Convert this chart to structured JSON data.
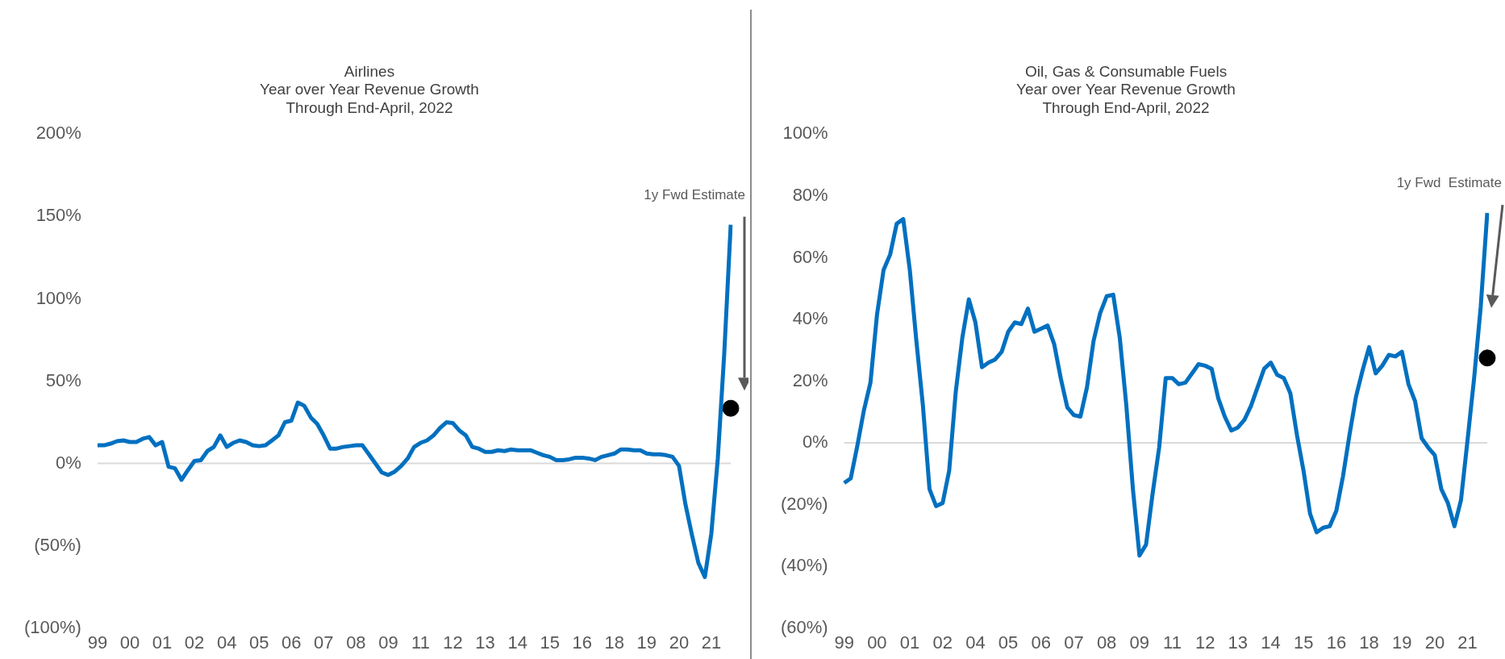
{
  "chart_data": [
    {
      "type": "line",
      "title": "Airlines",
      "subtitle": "Year over Year Revenue Growth\nThrough End-April, 2022",
      "categories": [
        "99",
        null,
        null,
        null,
        null,
        "00",
        null,
        null,
        null,
        null,
        "01",
        null,
        null,
        null,
        null,
        "02",
        null,
        null,
        null,
        null,
        "04",
        null,
        null,
        null,
        null,
        "05",
        null,
        null,
        null,
        null,
        "06",
        null,
        null,
        null,
        null,
        "07",
        null,
        null,
        null,
        null,
        "08",
        null,
        null,
        null,
        null,
        "09",
        null,
        null,
        null,
        null,
        "11",
        null,
        null,
        null,
        null,
        "12",
        null,
        null,
        null,
        null,
        "13",
        null,
        null,
        null,
        null,
        "14",
        null,
        null,
        null,
        null,
        "15",
        null,
        null,
        null,
        null,
        "16",
        null,
        null,
        null,
        null,
        "18",
        null,
        null,
        null,
        null,
        "19",
        null,
        null,
        null,
        null,
        "20",
        null,
        null,
        null,
        null,
        "21",
        null,
        null,
        null
      ],
      "series": [
        {
          "color": "#0070c0",
          "values": [
            11,
            11,
            12,
            13.5,
            14,
            13,
            13,
            15,
            16,
            11,
            13,
            -2,
            -3,
            -10,
            -4,
            1.5,
            2,
            7.5,
            10,
            17,
            10,
            12.5,
            14,
            13,
            11,
            10.5,
            11,
            14,
            17,
            25,
            26,
            37,
            35,
            28,
            24,
            17,
            9,
            9,
            10,
            10.5,
            11,
            11,
            5.5,
            0,
            -5.5,
            -7,
            -5,
            -1.5,
            3,
            10,
            12.5,
            14,
            17,
            21.5,
            25,
            24.5,
            20,
            17,
            10,
            9,
            7,
            7,
            8,
            7.5,
            8.5,
            8,
            8,
            8,
            6.5,
            5,
            4,
            2,
            2,
            2.5,
            3.5,
            3.5,
            3,
            2,
            4,
            5,
            6,
            8.5,
            8.5,
            8,
            8,
            6,
            5.5,
            5.5,
            5,
            4,
            -1.5,
            -25,
            -43.5,
            -60.5,
            -69,
            -42.5,
            3,
            67,
            145
          ]
        },
        {
          "type": "scatter",
          "name": "1y Fwd Estimate",
          "color": "#000000",
          "values": [
            null,
            null,
            null,
            null,
            null,
            null,
            null,
            null,
            null,
            null,
            null,
            null,
            null,
            null,
            null,
            null,
            null,
            null,
            null,
            null,
            null,
            null,
            null,
            null,
            null,
            null,
            null,
            null,
            null,
            null,
            null,
            null,
            null,
            null,
            null,
            null,
            null,
            null,
            null,
            null,
            null,
            null,
            null,
            null,
            null,
            null,
            null,
            null,
            null,
            null,
            null,
            null,
            null,
            null,
            null,
            null,
            null,
            null,
            null,
            null,
            null,
            null,
            null,
            null,
            null,
            null,
            null,
            null,
            null,
            null,
            null,
            null,
            null,
            null,
            null,
            null,
            null,
            null,
            null,
            null,
            null,
            null,
            null,
            null,
            null,
            null,
            null,
            null,
            null,
            null,
            null,
            null,
            null,
            null,
            null,
            null,
            null,
            null,
            33.5
          ]
        }
      ],
      "ylim": [
        -100,
        200
      ],
      "yticks": [
        {
          "value": -100,
          "label": "(100%)"
        },
        {
          "value": -50,
          "label": "(50%)"
        },
        {
          "value": 0,
          "label": "0%"
        },
        {
          "value": 50,
          "label": "50%"
        },
        {
          "value": 100,
          "label": "100%"
        },
        {
          "value": 150,
          "label": "150%"
        },
        {
          "value": 200,
          "label": "200%"
        }
      ],
      "ref_lines": [
        {
          "axis": "y",
          "value": 0,
          "color": "#d9d9d9"
        }
      ],
      "grid": false,
      "legend": false
    },
    {
      "type": "line",
      "title": "Oil, Gas & Consumable Fuels",
      "subtitle": "Year over Year Revenue Growth\nThrough End-April, 2022",
      "categories": [
        "99",
        null,
        null,
        null,
        null,
        "00",
        null,
        null,
        null,
        null,
        "01",
        null,
        null,
        null,
        null,
        "02",
        null,
        null,
        null,
        null,
        "04",
        null,
        null,
        null,
        null,
        "05",
        null,
        null,
        null,
        null,
        "06",
        null,
        null,
        null,
        null,
        "07",
        null,
        null,
        null,
        null,
        "08",
        null,
        null,
        null,
        null,
        "09",
        null,
        null,
        null,
        null,
        "11",
        null,
        null,
        null,
        null,
        "12",
        null,
        null,
        null,
        null,
        "13",
        null,
        null,
        null,
        null,
        "14",
        null,
        null,
        null,
        null,
        "15",
        null,
        null,
        null,
        null,
        "16",
        null,
        null,
        null,
        null,
        "18",
        null,
        null,
        null,
        null,
        "19",
        null,
        null,
        null,
        null,
        "20",
        null,
        null,
        null,
        null,
        "21",
        null,
        null,
        null
      ],
      "series": [
        {
          "color": "#0070c0",
          "values": [
            -13,
            -11.5,
            -1,
            10.5,
            19.5,
            41.5,
            56,
            61,
            71,
            72.5,
            56,
            33,
            12,
            -15,
            -20.5,
            -19.5,
            -9,
            16.5,
            34,
            46.5,
            39,
            24.5,
            26,
            27,
            29.5,
            36,
            39,
            38.5,
            43.5,
            36,
            37,
            38,
            32,
            21,
            11.5,
            9,
            8.5,
            18,
            33,
            42,
            47.5,
            48,
            34,
            12,
            -15,
            -36.5,
            -33,
            -16.5,
            -1.5,
            21,
            21,
            19,
            19.5,
            22.5,
            25.5,
            25,
            24,
            14.5,
            8.5,
            4,
            5,
            7.5,
            12,
            18,
            24,
            26,
            22,
            21,
            16,
            2.5,
            -9,
            -23,
            -29,
            -27.5,
            -27,
            -22,
            -11,
            2.5,
            15,
            23.5,
            31,
            22.5,
            25,
            28.5,
            28,
            29.5,
            19,
            13.5,
            1.5,
            -1.5,
            -4,
            -15,
            -19.5,
            -27,
            -18.5,
            1,
            21,
            44,
            74.5
          ]
        },
        {
          "type": "scatter",
          "name": "1y Fwd  Estimate",
          "color": "#000000",
          "values": [
            null,
            null,
            null,
            null,
            null,
            null,
            null,
            null,
            null,
            null,
            null,
            null,
            null,
            null,
            null,
            null,
            null,
            null,
            null,
            null,
            null,
            null,
            null,
            null,
            null,
            null,
            null,
            null,
            null,
            null,
            null,
            null,
            null,
            null,
            null,
            null,
            null,
            null,
            null,
            null,
            null,
            null,
            null,
            null,
            null,
            null,
            null,
            null,
            null,
            null,
            null,
            null,
            null,
            null,
            null,
            null,
            null,
            null,
            null,
            null,
            null,
            null,
            null,
            null,
            null,
            null,
            null,
            null,
            null,
            null,
            null,
            null,
            null,
            null,
            null,
            null,
            null,
            null,
            null,
            null,
            null,
            null,
            null,
            null,
            null,
            null,
            null,
            null,
            null,
            null,
            null,
            null,
            null,
            null,
            null,
            null,
            null,
            null,
            27.5
          ]
        }
      ],
      "ylim": [
        -60,
        100
      ],
      "yticks": [
        {
          "value": -60,
          "label": "(60%)"
        },
        {
          "value": -40,
          "label": "(40%)"
        },
        {
          "value": -20,
          "label": "(20%)"
        },
        {
          "value": 0,
          "label": "0%"
        },
        {
          "value": 20,
          "label": "20%"
        },
        {
          "value": 40,
          "label": "40%"
        },
        {
          "value": 60,
          "label": "60%"
        },
        {
          "value": 80,
          "label": "80%"
        },
        {
          "value": 100,
          "label": "100%"
        }
      ],
      "ref_lines": [
        {
          "axis": "y",
          "value": 0,
          "color": "#d9d9d9"
        }
      ],
      "grid": false,
      "legend": false
    }
  ]
}
